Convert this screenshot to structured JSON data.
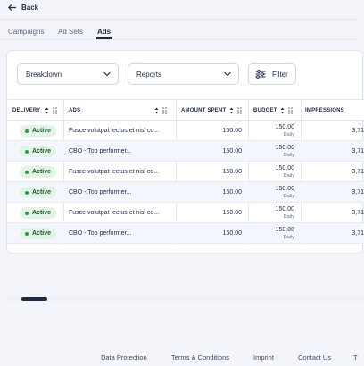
{
  "header": {
    "back_label": "Back"
  },
  "tabs": [
    {
      "label": "Campaigns",
      "active": false
    },
    {
      "label": "Ad Sets",
      "active": false
    },
    {
      "label": "Ads",
      "active": true
    }
  ],
  "toolbar": {
    "breakdown": "Breakdown",
    "reports": "Reports",
    "filter": "Filter"
  },
  "table": {
    "columns": [
      "DELIVERY",
      "ADS",
      "AMOUNT SPENT",
      "BUDGET",
      "IMPRESSIONS"
    ],
    "rows": [
      {
        "delivery": "Active",
        "ad": "Fusce volutpat lectus et nisl co...",
        "spent": "150.00",
        "budget": "150.00",
        "budget_type": "Daily",
        "impressions": "3,71"
      },
      {
        "delivery": "Active",
        "ad": "CBO - Top performer...",
        "spent": "150.00",
        "budget": "150.00",
        "budget_type": "Daily",
        "impressions": "3,71"
      },
      {
        "delivery": "Active",
        "ad": "Fusce volutpat lectus et nisl co...",
        "spent": "150.00",
        "budget": "150.00",
        "budget_type": "Daily",
        "impressions": "3,71"
      },
      {
        "delivery": "Active",
        "ad": "CBO - Top performer...",
        "spent": "150.00",
        "budget": "150.00",
        "budget_type": "Daily",
        "impressions": "3,71"
      },
      {
        "delivery": "Active",
        "ad": "Fusce volutpat lectus et nisl co...",
        "spent": "150.00",
        "budget": "150.00",
        "budget_type": "Daily",
        "impressions": "3,71"
      },
      {
        "delivery": "Active",
        "ad": "CBO - Top performer...",
        "spent": "150.00",
        "budget": "150.00",
        "budget_type": "Daily",
        "impressions": "3,71"
      }
    ]
  },
  "footer": {
    "links": [
      "Data Protection",
      "Terms & Conditions",
      "Imprint",
      "Contact Us",
      "T"
    ]
  },
  "colors": {
    "text": "#1f2a44",
    "active_badge_bg": "#e3f4e7",
    "active_badge_text": "#1c5b2e",
    "row_alt": "#f3f6fd"
  }
}
